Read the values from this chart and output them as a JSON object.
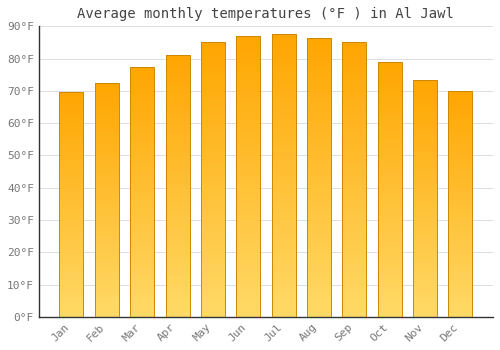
{
  "title": "Average monthly temperatures (°F ) in Al Jawl",
  "months": [
    "Jan",
    "Feb",
    "Mar",
    "Apr",
    "May",
    "Jun",
    "Jul",
    "Aug",
    "Sep",
    "Oct",
    "Nov",
    "Dec"
  ],
  "values": [
    69.5,
    72.5,
    77.5,
    81,
    85,
    87,
    87.5,
    86.5,
    85,
    79,
    73.5,
    70
  ],
  "bar_color_bottom": "#FFD966",
  "bar_color_top": "#FFA500",
  "bar_edge_color": "#CC8800",
  "background_color": "#FFFFFF",
  "grid_color": "#DDDDDD",
  "ylim": [
    0,
    90
  ],
  "yticks": [
    0,
    10,
    20,
    30,
    40,
    50,
    60,
    70,
    80,
    90
  ],
  "ytick_labels": [
    "0°F",
    "10°F",
    "20°F",
    "30°F",
    "40°F",
    "50°F",
    "60°F",
    "70°F",
    "80°F",
    "90°F"
  ],
  "title_fontsize": 10,
  "tick_fontsize": 8,
  "font_family": "monospace"
}
